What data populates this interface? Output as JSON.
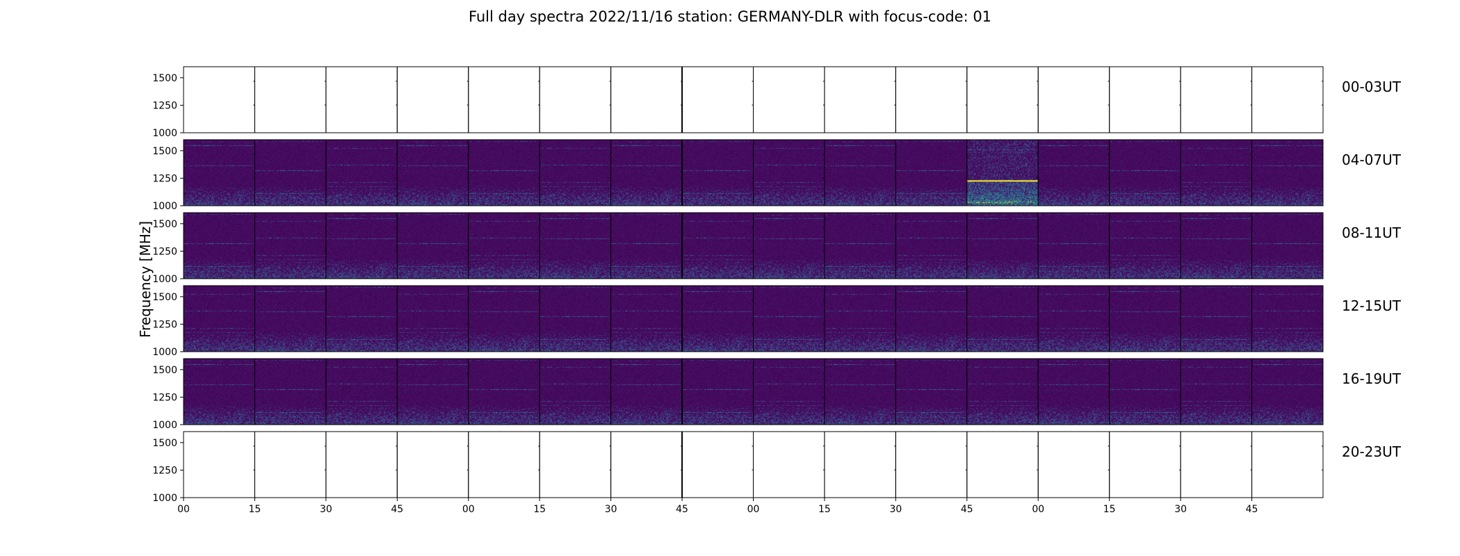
{
  "chart_data": {
    "type": "heatmap",
    "title": "Full day spectra 2022/11/16 station: GERMANY-DLR with focus-code: 01",
    "ylabel": "Frequency [MHz]",
    "xlabel": "",
    "yticks": [
      "1000",
      "1250",
      "1500"
    ],
    "ylim": [
      1000,
      1600
    ],
    "xticks": [
      "00",
      "15",
      "30",
      "45",
      "00",
      "15",
      "30",
      "45",
      "00",
      "15",
      "30",
      "45",
      "00",
      "15",
      "30",
      "45"
    ],
    "minutes_per_panel": 15,
    "panels_per_row": 16,
    "colormap": [
      "#440154",
      "#3b528b",
      "#21918c",
      "#5ec962",
      "#fde725"
    ],
    "rows": [
      {
        "label": "00-03UT",
        "panels_with_data": []
      },
      {
        "label": "04-07UT",
        "panels_with_data": [
          0,
          1,
          2,
          3,
          4,
          5,
          6,
          7,
          8,
          9,
          10,
          11,
          12,
          13,
          14,
          15
        ],
        "bright_panels": [
          11
        ]
      },
      {
        "label": "08-11UT",
        "panels_with_data": [
          0,
          1,
          2,
          3,
          4,
          5,
          6,
          7,
          8,
          9,
          10,
          11,
          12,
          13,
          14,
          15
        ]
      },
      {
        "label": "12-15UT",
        "panels_with_data": [
          0,
          1,
          2,
          3,
          4,
          5,
          6,
          7,
          8,
          9,
          10,
          11,
          12,
          13,
          14,
          15
        ]
      },
      {
        "label": "16-19UT",
        "panels_with_data": [
          0,
          1,
          2,
          3,
          4,
          5,
          6,
          7,
          8,
          9,
          10,
          11,
          12,
          13,
          14,
          15
        ]
      },
      {
        "label": "20-23UT",
        "panels_with_data": []
      }
    ]
  }
}
